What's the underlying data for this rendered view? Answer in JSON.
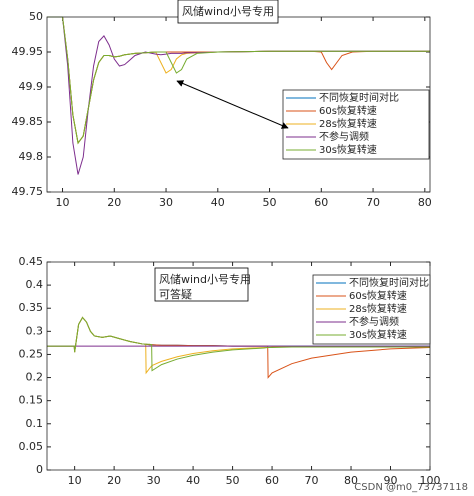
{
  "chart_data": [
    {
      "type": "line",
      "x": [
        7,
        10,
        11,
        12,
        13,
        14,
        15,
        16,
        17,
        18,
        19,
        20,
        21,
        22,
        24,
        26,
        28,
        29,
        30,
        31,
        32,
        33,
        34,
        36,
        40,
        50,
        58,
        60,
        61,
        62,
        63,
        64,
        66,
        70,
        81
      ],
      "series": [
        {
          "name": "不同恢复时间对比",
          "color": "#0072bd",
          "values": [
            50,
            50,
            49.94,
            49.86,
            49.82,
            49.83,
            49.87,
            49.91,
            49.935,
            49.945,
            49.945,
            49.943,
            49.944,
            49.946,
            49.948,
            49.949,
            49.95,
            49.95,
            49.95,
            49.95,
            49.95,
            49.95,
            49.95,
            49.95,
            49.95,
            49.951,
            49.951,
            49.951,
            49.951,
            49.951,
            49.951,
            49.951,
            49.951,
            49.951,
            49.951
          ]
        },
        {
          "name": "60s恢复转速",
          "color": "#d95319",
          "values": [
            50,
            50,
            49.94,
            49.86,
            49.82,
            49.83,
            49.87,
            49.91,
            49.935,
            49.945,
            49.945,
            49.943,
            49.944,
            49.946,
            49.948,
            49.949,
            49.95,
            49.95,
            49.95,
            49.95,
            49.95,
            49.95,
            49.95,
            49.95,
            49.95,
            49.951,
            49.951,
            49.95,
            49.935,
            49.925,
            49.935,
            49.945,
            49.95,
            49.951,
            49.951
          ]
        },
        {
          "name": "28s恢复转速",
          "color": "#edb120",
          "values": [
            50,
            50,
            49.94,
            49.86,
            49.82,
            49.83,
            49.87,
            49.91,
            49.935,
            49.945,
            49.945,
            49.943,
            49.944,
            49.946,
            49.948,
            49.949,
            49.95,
            49.935,
            49.92,
            49.925,
            49.94,
            49.946,
            49.948,
            49.949,
            49.95,
            49.951,
            49.951,
            49.951,
            49.951,
            49.951,
            49.951,
            49.951,
            49.951,
            49.951,
            49.951
          ]
        },
        {
          "name": "不参与调频",
          "color": "#7e2f8e",
          "values": [
            50,
            50,
            49.93,
            49.82,
            49.775,
            49.8,
            49.87,
            49.93,
            49.965,
            49.973,
            49.96,
            49.94,
            49.93,
            49.932,
            49.945,
            49.95,
            49.947,
            49.946,
            49.947,
            49.948,
            49.948,
            49.948,
            49.949,
            49.949,
            49.95,
            49.951,
            49.951,
            49.951,
            49.951,
            49.951,
            49.951,
            49.951,
            49.951,
            49.951,
            49.951
          ]
        },
        {
          "name": "30s恢复转速",
          "color": "#77ac30",
          "values": [
            50,
            50,
            49.94,
            49.86,
            49.82,
            49.83,
            49.87,
            49.91,
            49.935,
            49.945,
            49.945,
            49.943,
            49.944,
            49.946,
            49.948,
            49.949,
            49.95,
            49.95,
            49.95,
            49.935,
            49.92,
            49.925,
            49.94,
            49.948,
            49.95,
            49.951,
            49.951,
            49.951,
            49.951,
            49.951,
            49.951,
            49.951,
            49.951,
            49.951,
            49.951
          ]
        }
      ],
      "xlim": [
        7,
        81
      ],
      "ylim": [
        49.75,
        50
      ],
      "xticks": [
        10,
        20,
        30,
        40,
        50,
        60,
        70,
        80
      ],
      "yticks": [
        49.75,
        49.8,
        49.85,
        49.9,
        49.95,
        50
      ],
      "legend": "right",
      "annotation": [
        "风储wind小号专用"
      ]
    },
    {
      "type": "line",
      "x": [
        3,
        9.9,
        10,
        11,
        12,
        13,
        14,
        15,
        17,
        19,
        21,
        24,
        27,
        28,
        28.1,
        29,
        29.5,
        29.6,
        32,
        36,
        40,
        45,
        50,
        58,
        58.9,
        59,
        60,
        65,
        70,
        80,
        90,
        100
      ],
      "series": [
        {
          "name": "不同恢复时间对比",
          "color": "#0072bd",
          "values": [
            0.268,
            0.268,
            0.255,
            0.315,
            0.33,
            0.32,
            0.3,
            0.29,
            0.287,
            0.29,
            0.285,
            0.278,
            0.273,
            0.272,
            0.272,
            0.271,
            0.271,
            0.271,
            0.27,
            0.27,
            0.269,
            0.269,
            0.268,
            0.268,
            0.268,
            0.268,
            0.268,
            0.268,
            0.268,
            0.268,
            0.268,
            0.268
          ]
        },
        {
          "name": "60s恢复转速",
          "color": "#d95319",
          "values": [
            0.268,
            0.268,
            0.255,
            0.315,
            0.33,
            0.32,
            0.3,
            0.29,
            0.287,
            0.29,
            0.285,
            0.278,
            0.273,
            0.272,
            0.272,
            0.271,
            0.271,
            0.271,
            0.27,
            0.27,
            0.269,
            0.269,
            0.268,
            0.268,
            0.268,
            0.2,
            0.21,
            0.23,
            0.242,
            0.255,
            0.262,
            0.265
          ]
        },
        {
          "name": "28s恢复转速",
          "color": "#edb120",
          "values": [
            0.268,
            0.268,
            0.255,
            0.315,
            0.33,
            0.32,
            0.3,
            0.29,
            0.287,
            0.29,
            0.285,
            0.278,
            0.273,
            0.272,
            0.21,
            0.22,
            0.225,
            0.226,
            0.235,
            0.245,
            0.252,
            0.258,
            0.262,
            0.265,
            0.265,
            0.265,
            0.266,
            0.266,
            0.266,
            0.266,
            0.266,
            0.266
          ]
        },
        {
          "name": "不参与调频",
          "color": "#7e2f8e",
          "values": [
            0.268,
            0.268,
            0.268,
            0.268,
            0.268,
            0.268,
            0.268,
            0.268,
            0.268,
            0.268,
            0.268,
            0.268,
            0.268,
            0.268,
            0.268,
            0.268,
            0.268,
            0.268,
            0.268,
            0.268,
            0.268,
            0.268,
            0.268,
            0.268,
            0.268,
            0.268,
            0.268,
            0.268,
            0.268,
            0.268,
            0.268,
            0.268
          ]
        },
        {
          "name": "30s恢复转速",
          "color": "#77ac30",
          "values": [
            0.268,
            0.268,
            0.255,
            0.315,
            0.33,
            0.32,
            0.3,
            0.29,
            0.287,
            0.29,
            0.285,
            0.278,
            0.273,
            0.272,
            0.272,
            0.272,
            0.271,
            0.215,
            0.228,
            0.24,
            0.248,
            0.255,
            0.26,
            0.264,
            0.265,
            0.265,
            0.265,
            0.266,
            0.266,
            0.266,
            0.266,
            0.266
          ]
        }
      ],
      "xlim": [
        3,
        100
      ],
      "ylim": [
        0,
        0.45
      ],
      "xticks": [
        10,
        20,
        30,
        40,
        50,
        60,
        70,
        80,
        90,
        100
      ],
      "yticks": [
        0,
        0.05,
        0.1,
        0.15,
        0.2,
        0.25,
        0.3,
        0.35,
        0.4,
        0.45
      ],
      "legend": "upper right",
      "annotation": [
        "风储wind小号专用",
        "可答疑"
      ]
    }
  ],
  "watermark": "CSDN @m0_73737118"
}
